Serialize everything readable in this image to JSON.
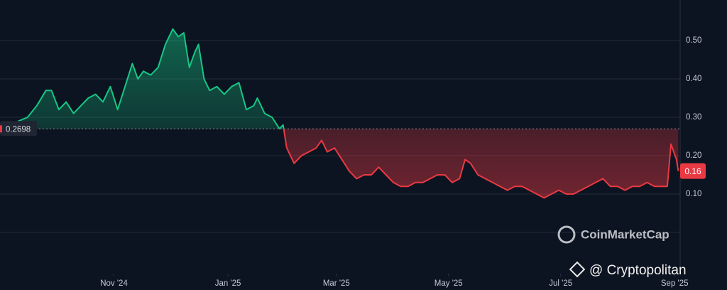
{
  "chart_data": {
    "type": "line",
    "x": [
      0,
      5,
      10,
      15,
      20,
      25,
      28,
      32,
      36,
      40,
      44,
      48,
      52,
      56,
      60,
      64,
      68,
      72,
      75,
      78,
      82,
      86,
      90,
      94,
      97,
      100,
      103,
      106,
      108,
      111,
      114,
      118,
      122,
      126,
      130,
      134,
      138,
      140,
      144,
      148,
      152,
      154,
      156,
      160,
      164,
      168,
      172,
      175,
      178,
      182,
      186,
      190,
      194,
      198,
      202,
      206,
      210,
      214,
      218,
      222,
      226,
      230,
      234,
      238,
      242,
      246,
      250,
      253,
      256,
      260,
      264,
      268,
      272,
      276,
      280,
      284,
      288,
      292,
      296,
      300,
      304,
      308,
      312,
      316,
      320,
      324,
      328,
      332,
      336,
      340,
      344,
      348,
      352,
      356,
      360,
      363,
      365,
      368,
      369
    ],
    "series": [
      {
        "values": [
          0.27,
          0.27,
          0.29,
          0.3,
          0.33,
          0.37,
          0.37,
          0.32,
          0.34,
          0.31,
          0.33,
          0.35,
          0.36,
          0.34,
          0.38,
          0.32,
          0.38,
          0.44,
          0.4,
          0.42,
          0.41,
          0.43,
          0.49,
          0.53,
          0.51,
          0.52,
          0.43,
          0.47,
          0.49,
          0.4,
          0.37,
          0.38,
          0.36,
          0.38,
          0.39,
          0.32,
          0.33,
          0.35,
          0.31,
          0.3,
          0.27,
          0.28,
          0.22,
          0.18,
          0.2,
          0.21,
          0.22,
          0.24,
          0.21,
          0.22,
          0.19,
          0.16,
          0.14,
          0.15,
          0.15,
          0.17,
          0.15,
          0.13,
          0.12,
          0.12,
          0.13,
          0.13,
          0.14,
          0.15,
          0.15,
          0.13,
          0.14,
          0.19,
          0.18,
          0.15,
          0.14,
          0.13,
          0.12,
          0.11,
          0.12,
          0.12,
          0.11,
          0.1,
          0.09,
          0.1,
          0.11,
          0.1,
          0.1,
          0.11,
          0.12,
          0.13,
          0.14,
          0.12,
          0.12,
          0.11,
          0.12,
          0.12,
          0.13,
          0.12,
          0.12,
          0.12,
          0.23,
          0.19,
          0.16
        ]
      }
    ],
    "baseline": 0.2698,
    "up_color": "#16c784",
    "down_color": "#ea3943",
    "xlim": [
      0,
      370
    ],
    "ylim": [
      0,
      0.6
    ],
    "xticks": [
      {
        "value": 62,
        "label": "Nov '24"
      },
      {
        "value": 124,
        "label": "Jan '25"
      },
      {
        "value": 183,
        "label": "Mar '25"
      },
      {
        "value": 244,
        "label": "May '25"
      },
      {
        "value": 305,
        "label": "Jul '25"
      },
      {
        "value": 367,
        "label": "Sep '25"
      }
    ],
    "yticks": [
      {
        "value": 0.1,
        "label": "0.10"
      },
      {
        "value": 0.2,
        "label": "0.20"
      },
      {
        "value": 0.3,
        "label": "0.30"
      },
      {
        "value": 0.4,
        "label": "0.40"
      },
      {
        "value": 0.5,
        "label": "0.50"
      }
    ],
    "grid": true,
    "watermark": "CoinMarketCap",
    "credit": "@ Cryptopolitan"
  }
}
